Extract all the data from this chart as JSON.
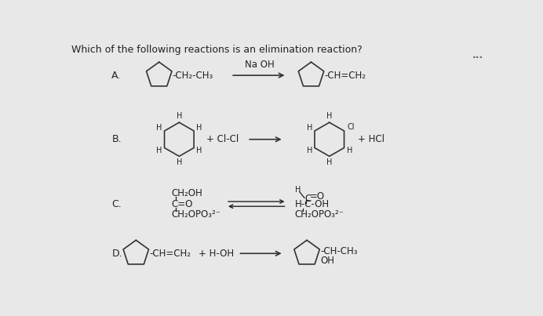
{
  "title": "Which of the following reactions is an elimination reaction?",
  "title_fontsize": 9,
  "bg_color": "#e8e8e8",
  "text_color": "#222222",
  "label_A": "A.",
  "label_B": "B.",
  "label_C": "C.",
  "label_D": "D.",
  "dots": "...",
  "rxn_A_reagent": "Na OH",
  "rxn_A_left_sub": "-CH₂-CH₃",
  "rxn_A_right_sub": "-CH=CH₂",
  "rxn_B_plus1": "+ Cl-Cl",
  "rxn_B_plus2": "+ HCl",
  "rxn_C_left1": "CH₂OH",
  "rxn_C_left2": "C=O",
  "rxn_C_left3": "CH₂OPO₃²⁻",
  "rxn_C_right1": "H-C-OH",
  "rxn_C_right2": "CH₂OPO₃²⁻",
  "rxn_D_left_sub": "-CH=CH₂",
  "rxn_D_reagent": "+ H-OH",
  "rxn_D_right_sub": "-CH-CH₃",
  "rxn_D_right_sub2": "OH"
}
